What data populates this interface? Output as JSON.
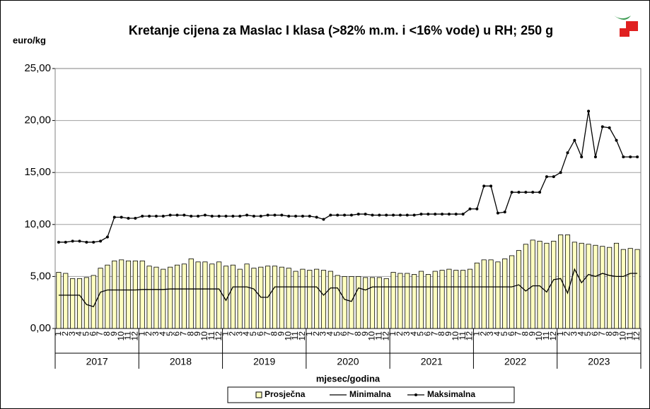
{
  "chart_data": {
    "type": "bar",
    "title": "Kretanje cijena za Maslac I klasa (>82% m.m. i <16% vode) u RH; 250 g",
    "y_label": "euro/kg",
    "x_label": "mjesec/godina",
    "categories": [
      "1",
      "2",
      "3",
      "4",
      "5",
      "6",
      "7",
      "8",
      "9",
      "10",
      "11",
      "12",
      "1",
      "2",
      "3",
      "4",
      "5",
      "6",
      "7",
      "8",
      "9",
      "10",
      "11",
      "12",
      "1",
      "2",
      "3",
      "4",
      "5",
      "6",
      "7",
      "8",
      "9",
      "10",
      "11",
      "12",
      "1",
      "2",
      "3",
      "4",
      "5",
      "6",
      "7",
      "8",
      "9",
      "10",
      "11",
      "12",
      "1",
      "2",
      "3",
      "4",
      "5",
      "6",
      "7",
      "8",
      "9",
      "10",
      "11",
      "12",
      "1",
      "2",
      "3",
      "4",
      "5",
      "6",
      "7",
      "8",
      "9",
      "10",
      "11",
      "12",
      "1",
      "2",
      "3",
      "4",
      "5",
      "6",
      "7",
      "8",
      "9",
      "10",
      "11",
      "12"
    ],
    "years": [
      "2017",
      "2018",
      "2019",
      "2020",
      "2021",
      "2022",
      "2023"
    ],
    "series": [
      {
        "name": "Prosječna",
        "type": "bar",
        "color": "#ffffc0",
        "values": [
          5.4,
          5.3,
          4.8,
          4.8,
          4.9,
          5.1,
          5.8,
          6.1,
          6.5,
          6.6,
          6.5,
          6.5,
          6.5,
          6.0,
          5.9,
          5.7,
          5.9,
          6.1,
          6.2,
          6.7,
          6.4,
          6.4,
          6.2,
          6.4,
          6.0,
          6.1,
          5.7,
          6.2,
          5.8,
          5.9,
          6.0,
          6.0,
          5.9,
          5.8,
          5.5,
          5.7,
          5.6,
          5.7,
          5.6,
          5.5,
          5.1,
          5.0,
          5.0,
          5.0,
          4.9,
          4.9,
          4.9,
          4.8,
          5.4,
          5.3,
          5.3,
          5.2,
          5.5,
          5.2,
          5.5,
          5.6,
          5.7,
          5.6,
          5.6,
          5.7,
          6.3,
          6.6,
          6.6,
          6.4,
          6.7,
          7.0,
          7.5,
          8.1,
          8.5,
          8.4,
          8.2,
          8.4,
          9.0,
          9.0,
          8.3,
          8.2,
          8.1,
          8.0,
          7.9,
          7.8,
          8.2,
          7.6,
          7.7,
          7.6
        ]
      },
      {
        "name": "Minimalna",
        "type": "line",
        "color": "#000000",
        "values": [
          3.2,
          3.2,
          3.2,
          3.2,
          2.3,
          2.1,
          3.5,
          3.7,
          3.7,
          3.7,
          3.7,
          3.7,
          3.75,
          3.75,
          3.75,
          3.75,
          3.8,
          3.8,
          3.8,
          3.8,
          3.8,
          3.8,
          3.8,
          3.8,
          2.7,
          4.0,
          4.0,
          4.0,
          3.8,
          3.0,
          3.0,
          4.0,
          4.0,
          4.0,
          4.0,
          4.0,
          4.0,
          4.0,
          3.2,
          3.9,
          3.9,
          2.8,
          2.6,
          3.9,
          3.7,
          4.0,
          4.0,
          4.0,
          4.0,
          4.0,
          4.0,
          4.0,
          4.0,
          4.0,
          4.0,
          4.0,
          4.0,
          4.0,
          4.0,
          4.0,
          4.0,
          4.0,
          4.0,
          4.0,
          4.0,
          4.0,
          4.2,
          3.6,
          4.1,
          4.1,
          3.5,
          4.7,
          4.8,
          3.4,
          5.7,
          4.4,
          5.2,
          5.0,
          5.3,
          5.1,
          5.0,
          5.0,
          5.3,
          5.3
        ]
      },
      {
        "name": "Maksimalna",
        "type": "line",
        "markers": true,
        "color": "#000000",
        "values": [
          8.3,
          8.3,
          8.4,
          8.4,
          8.3,
          8.3,
          8.4,
          8.8,
          10.7,
          10.7,
          10.6,
          10.6,
          10.8,
          10.8,
          10.8,
          10.8,
          10.9,
          10.9,
          10.9,
          10.8,
          10.8,
          10.9,
          10.8,
          10.8,
          10.8,
          10.8,
          10.8,
          10.9,
          10.8,
          10.8,
          10.9,
          10.9,
          10.9,
          10.8,
          10.8,
          10.8,
          10.8,
          10.7,
          10.5,
          10.9,
          10.9,
          10.9,
          10.9,
          11.0,
          11.0,
          10.9,
          10.9,
          10.9,
          10.9,
          10.9,
          10.9,
          10.9,
          11.0,
          11.0,
          11.0,
          11.0,
          11.0,
          11.0,
          11.0,
          11.5,
          11.5,
          13.7,
          13.7,
          11.1,
          11.2,
          13.1,
          13.1,
          13.1,
          13.1,
          13.1,
          14.6,
          14.6,
          15.0,
          16.9,
          18.1,
          16.5,
          20.9,
          16.5,
          19.4,
          19.3,
          18.1,
          16.5,
          16.5,
          16.5
        ]
      }
    ],
    "ylim": [
      0,
      25
    ],
    "yticks": [
      {
        "value": 0,
        "label": "0,00"
      },
      {
        "value": 5,
        "label": "5,00"
      },
      {
        "value": 10,
        "label": "10,00"
      },
      {
        "value": 15,
        "label": "15,00"
      },
      {
        "value": 20,
        "label": "20,00"
      },
      {
        "value": 25,
        "label": "25,00"
      }
    ],
    "grid": true,
    "legend": "bottom"
  }
}
